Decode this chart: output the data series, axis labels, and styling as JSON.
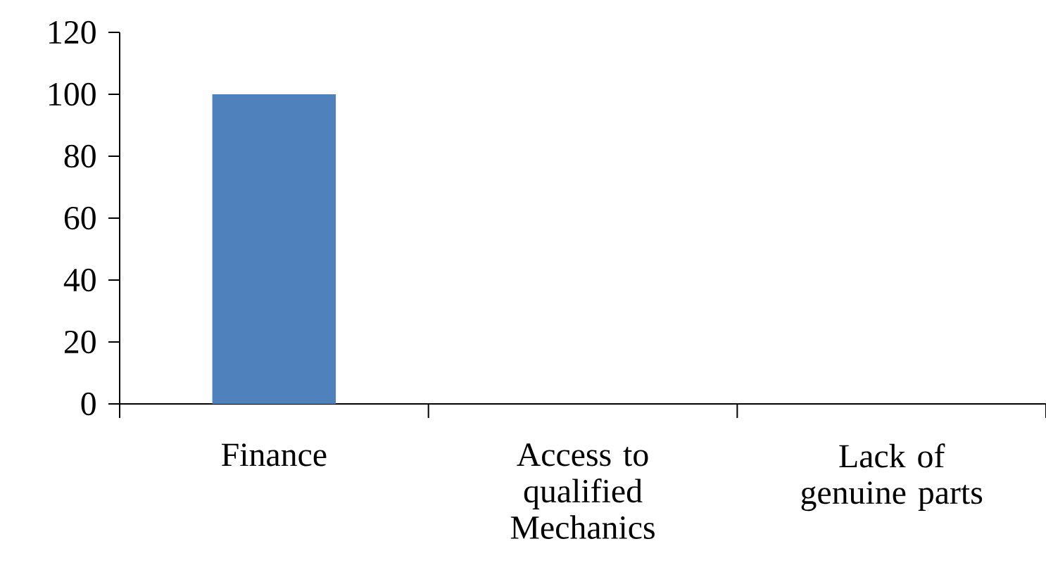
{
  "chart_data": {
    "type": "bar",
    "categories": [
      "Finance",
      "Access to qualified Mechanics",
      "Lack of genuine parts"
    ],
    "values": [
      100,
      0,
      0
    ],
    "color": "#4f81bd",
    "ylim": [
      0,
      120
    ],
    "yticks": [
      0,
      20,
      40,
      60,
      80,
      100,
      120
    ],
    "grid": false
  }
}
